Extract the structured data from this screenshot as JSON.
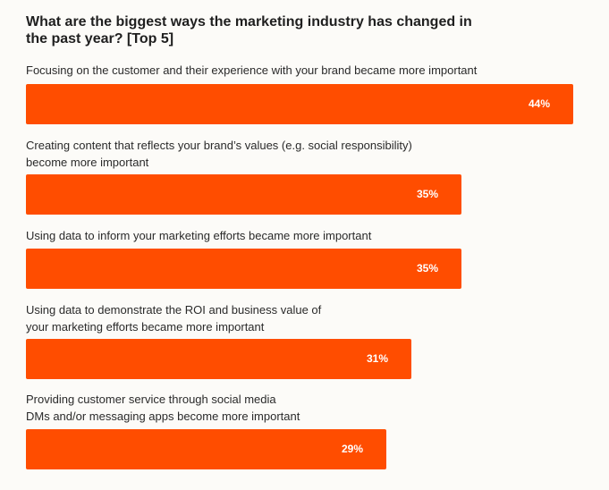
{
  "chart_data": {
    "type": "bar",
    "orientation": "horizontal",
    "title": "What are the biggest ways the marketing industry has changed in\nthe past year? [Top 5]",
    "categories": [
      "Focusing on the customer and their experience with your brand became more important",
      "Creating content that reflects your brand’s values (e.g. social responsibility)\nbecome more important",
      "Using data to inform your marketing efforts became more important",
      "Using data to demonstrate the ROI and business value of\nyour marketing efforts became more important",
      "Providing customer service through social media\nDMs and/or messaging apps become more important"
    ],
    "values": [
      44,
      35,
      35,
      31,
      29
    ],
    "value_labels": [
      "44%",
      "35%",
      "35%",
      "31%",
      "29%"
    ],
    "unit": "%",
    "xlim": [
      0,
      44
    ],
    "grid": false,
    "legend": "none",
    "bar_color": "#ff4d00"
  }
}
